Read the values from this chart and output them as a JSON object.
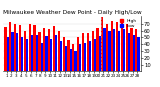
{
  "title": "Milwaukee Weather Dew Point - Daily High/Low",
  "title_fontsize": 4.2,
  "highs": [
    65,
    72,
    70,
    68,
    60,
    70,
    68,
    58,
    64,
    62,
    67,
    60,
    50,
    46,
    40,
    50,
    57,
    57,
    60,
    64,
    80,
    70,
    74,
    72,
    74,
    70,
    64,
    62
  ],
  "lows": [
    50,
    58,
    57,
    50,
    47,
    54,
    54,
    42,
    52,
    47,
    54,
    44,
    37,
    33,
    30,
    40,
    42,
    44,
    47,
    52,
    64,
    60,
    62,
    60,
    62,
    57,
    54,
    50
  ],
  "bar_color_high": "#ff0000",
  "bar_color_low": "#0000ff",
  "yticks": [
    10,
    20,
    30,
    40,
    50,
    60,
    70
  ],
  "ylim": [
    0,
    82
  ],
  "bg_color": "#ffffff",
  "legend_high": "High",
  "legend_low": "Low",
  "dashed_line_x": 20
}
